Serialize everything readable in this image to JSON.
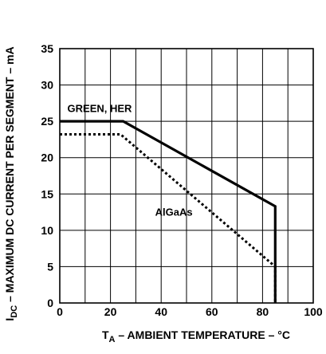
{
  "chart_data": {
    "type": "line",
    "xlabel": {
      "prefix": "T",
      "subscript": "A",
      "rest": " – AMBIENT TEMPERATURE – °C"
    },
    "ylabel": {
      "prefix": "I",
      "subscript": "DC",
      "rest": " – MAXIMUM DC CURRENT PER SEGMENT – mA"
    },
    "xlim": [
      0,
      100
    ],
    "ylim": [
      0,
      35
    ],
    "x_ticks": [
      0,
      20,
      40,
      60,
      80,
      100
    ],
    "y_ticks": [
      0,
      5,
      10,
      15,
      20,
      25,
      30,
      35
    ],
    "grid": true,
    "series": [
      {
        "name": "GREEN, HER",
        "style": "solid",
        "color": "#000000",
        "x": [
          0,
          25,
          85,
          85
        ],
        "y": [
          25,
          25,
          13.3,
          0
        ]
      },
      {
        "name": "AlGaAs",
        "style": "dotted",
        "color": "#000000",
        "x": [
          0,
          24,
          85,
          85
        ],
        "y": [
          23.2,
          23.2,
          5,
          0
        ]
      }
    ]
  }
}
